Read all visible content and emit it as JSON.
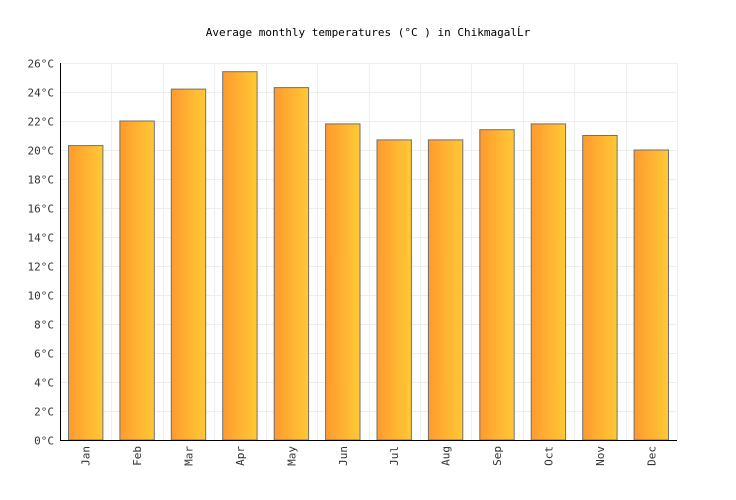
{
  "chart_data": {
    "type": "bar",
    "title": "Average monthly temperatures (°C ) in ChikmagalĹr",
    "xlabel": "",
    "ylabel": "",
    "categories": [
      "Jan",
      "Feb",
      "Mar",
      "Apr",
      "May",
      "Jun",
      "Jul",
      "Aug",
      "Sep",
      "Oct",
      "Nov",
      "Dec"
    ],
    "values": [
      20.3,
      22.0,
      24.2,
      25.4,
      24.3,
      21.8,
      20.7,
      20.7,
      21.4,
      21.8,
      21.0,
      20.0
    ],
    "ylim": [
      0,
      26
    ],
    "yticks": [
      "0°C",
      "2°C",
      "4°C",
      "6°C",
      "8°C",
      "10°C",
      "12°C",
      "14°C",
      "16°C",
      "18°C",
      "20°C",
      "22°C",
      "24°C",
      "26°C"
    ],
    "grid": true,
    "legend": "none",
    "colors": {
      "bar_start": "#ff9a2e",
      "bar_end": "#ffc935",
      "bar_border": "#707070",
      "grid": "#eeeeee",
      "axis": "#000000"
    }
  }
}
